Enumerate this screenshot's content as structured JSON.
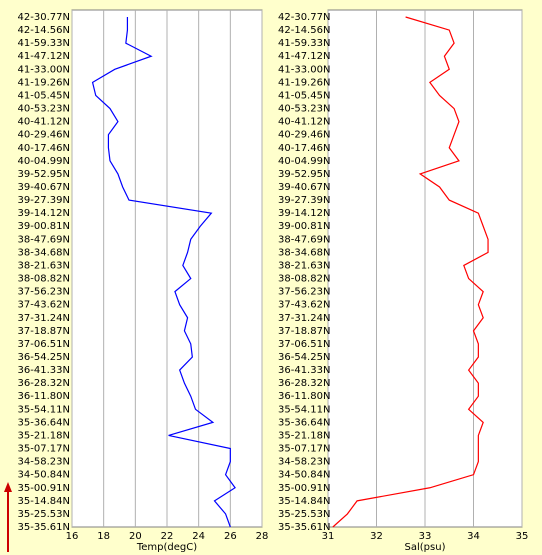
{
  "chart_data": [
    {
      "type": "line",
      "xlabel": "Temp(degC)",
      "color": "#0000ff",
      "grid": true,
      "categories": [
        "42-30.77N",
        "42-14.56N",
        "41-59.33N",
        "41-47.12N",
        "41-33.00N",
        "41-19.26N",
        "41-05.45N",
        "40-53.23N",
        "40-41.12N",
        "40-29.46N",
        "40-17.46N",
        "40-04.99N",
        "39-52.95N",
        "39-40.67N",
        "39-27.39N",
        "39-14.12N",
        "39-00.81N",
        "38-47.69N",
        "38-34.68N",
        "38-21.63N",
        "38-08.82N",
        "37-56.23N",
        "37-43.62N",
        "37-31.24N",
        "37-18.87N",
        "37-06.51N",
        "36-54.25N",
        "36-41.33N",
        "36-28.32N",
        "36-11.80N",
        "35-54.11N",
        "35-36.64N",
        "35-21.18N",
        "35-07.17N",
        "34-58.23N",
        "34-50.84N",
        "35-00.91N",
        "35-14.84N",
        "35-25.53N",
        "35-35.61N"
      ],
      "values": [
        19.5,
        19.5,
        19.4,
        21.0,
        18.7,
        17.3,
        17.5,
        18.4,
        18.9,
        18.3,
        18.3,
        18.4,
        18.9,
        19.2,
        19.6,
        24.8,
        24.1,
        23.5,
        23.3,
        23.0,
        23.5,
        22.5,
        22.8,
        23.3,
        23.1,
        23.5,
        23.6,
        22.8,
        23.1,
        23.5,
        23.8,
        24.9,
        22.1,
        26.0,
        26.0,
        25.7,
        26.3,
        25.0,
        25.7,
        26.0
      ],
      "xlim": [
        16,
        28
      ],
      "xticks": [
        16,
        18,
        20,
        22,
        24,
        26,
        28
      ]
    },
    {
      "type": "line",
      "xlabel": "Sal(psu)",
      "color": "#ff0000",
      "grid": true,
      "categories": [
        "42-30.77N",
        "42-14.56N",
        "41-59.33N",
        "41-47.12N",
        "41-33.00N",
        "41-19.26N",
        "41-05.45N",
        "40-53.23N",
        "40-41.12N",
        "40-29.46N",
        "40-17.46N",
        "40-04.99N",
        "39-52.95N",
        "39-40.67N",
        "39-27.39N",
        "39-14.12N",
        "39-00.81N",
        "38-47.69N",
        "38-34.68N",
        "38-21.63N",
        "38-08.82N",
        "37-56.23N",
        "37-43.62N",
        "37-31.24N",
        "37-18.87N",
        "37-06.51N",
        "36-54.25N",
        "36-41.33N",
        "36-28.32N",
        "36-11.80N",
        "35-54.11N",
        "35-36.64N",
        "35-21.18N",
        "35-07.17N",
        "34-58.23N",
        "34-50.84N",
        "35-00.91N",
        "35-14.84N",
        "35-25.53N",
        "35-35.61N"
      ],
      "values": [
        32.6,
        33.5,
        33.6,
        33.4,
        33.5,
        33.1,
        33.3,
        33.6,
        33.7,
        33.6,
        33.5,
        33.7,
        32.9,
        33.3,
        33.5,
        34.1,
        34.2,
        34.3,
        34.3,
        33.8,
        33.9,
        34.2,
        34.1,
        34.2,
        34.0,
        34.1,
        34.1,
        33.9,
        34.1,
        34.1,
        33.9,
        34.2,
        34.1,
        34.1,
        34.1,
        34.0,
        33.1,
        31.6,
        31.4,
        31.1
      ],
      "xlim": [
        31,
        35
      ],
      "xticks": [
        31,
        32,
        33,
        34,
        35
      ]
    }
  ]
}
